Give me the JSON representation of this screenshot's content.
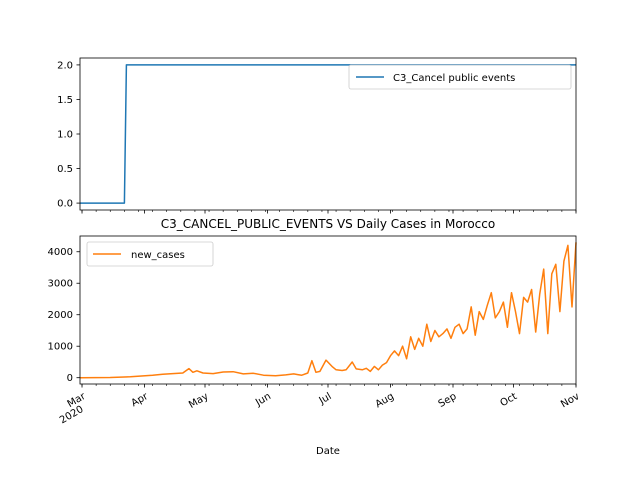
{
  "chart_data": [
    {
      "type": "line",
      "title": "",
      "xlabel": "",
      "ylabel": "",
      "x_range": [
        "2020-02-29",
        "2020-11-01"
      ],
      "ylim": [
        -0.1,
        2.1
      ],
      "y_ticks": [
        "0.0",
        "0.5",
        "1.0",
        "1.5",
        "2.0"
      ],
      "grid": false,
      "legend_placement": "upper right",
      "color": "#1f77b4",
      "series": [
        {
          "name": "C3_Cancel public events",
          "x": [
            "2020-02-29",
            "2020-03-22",
            "2020-03-23",
            "2020-11-01"
          ],
          "values": [
            0,
            0,
            2,
            2
          ]
        }
      ]
    },
    {
      "type": "line",
      "title": "C3_CANCEL_PUBLIC_EVENTS VS Daily Cases in Morocco",
      "xlabel": "Date",
      "ylabel": "",
      "x_range": [
        "2020-02-29",
        "2020-11-01"
      ],
      "ylim": [
        -200,
        4500
      ],
      "y_ticks": [
        "0",
        "1000",
        "2000",
        "3000",
        "4000"
      ],
      "x_ticks": [
        {
          "date": "2020-03-01",
          "label": "Mar",
          "sublabel": "2020"
        },
        {
          "date": "2020-04-01",
          "label": "Apr"
        },
        {
          "date": "2020-05-01",
          "label": "May"
        },
        {
          "date": "2020-06-01",
          "label": "Jun"
        },
        {
          "date": "2020-07-01",
          "label": "Jul"
        },
        {
          "date": "2020-08-01",
          "label": "Aug"
        },
        {
          "date": "2020-09-01",
          "label": "Sep"
        },
        {
          "date": "2020-10-01",
          "label": "Oct"
        },
        {
          "date": "2020-11-01",
          "label": "Nov"
        }
      ],
      "grid": false,
      "legend_placement": "upper left",
      "color": "#ff7f0e",
      "series": [
        {
          "name": "new_cases",
          "x": [
            "2020-02-29",
            "2020-03-15",
            "2020-03-25",
            "2020-04-05",
            "2020-04-10",
            "2020-04-15",
            "2020-04-20",
            "2020-04-23",
            "2020-04-25",
            "2020-04-27",
            "2020-04-30",
            "2020-05-05",
            "2020-05-10",
            "2020-05-15",
            "2020-05-20",
            "2020-05-25",
            "2020-05-30",
            "2020-06-05",
            "2020-06-10",
            "2020-06-14",
            "2020-06-16",
            "2020-06-18",
            "2020-06-21",
            "2020-06-23",
            "2020-06-25",
            "2020-06-27",
            "2020-06-30",
            "2020-07-03",
            "2020-07-05",
            "2020-07-08",
            "2020-07-10",
            "2020-07-13",
            "2020-07-15",
            "2020-07-18",
            "2020-07-20",
            "2020-07-22",
            "2020-07-24",
            "2020-07-26",
            "2020-07-28",
            "2020-07-30",
            "2020-08-01",
            "2020-08-03",
            "2020-08-05",
            "2020-08-07",
            "2020-08-09",
            "2020-08-11",
            "2020-08-13",
            "2020-08-15",
            "2020-08-17",
            "2020-08-19",
            "2020-08-21",
            "2020-08-23",
            "2020-08-25",
            "2020-08-27",
            "2020-08-29",
            "2020-08-31",
            "2020-09-02",
            "2020-09-04",
            "2020-09-06",
            "2020-09-08",
            "2020-09-10",
            "2020-09-12",
            "2020-09-14",
            "2020-09-16",
            "2020-09-18",
            "2020-09-20",
            "2020-09-22",
            "2020-09-24",
            "2020-09-26",
            "2020-09-28",
            "2020-09-30",
            "2020-10-02",
            "2020-10-04",
            "2020-10-06",
            "2020-10-08",
            "2020-10-10",
            "2020-10-12",
            "2020-10-14",
            "2020-10-16",
            "2020-10-18",
            "2020-10-20",
            "2020-10-22",
            "2020-10-24",
            "2020-10-26",
            "2020-10-28",
            "2020-10-30",
            "2020-11-01"
          ],
          "values": [
            0,
            5,
            30,
            80,
            110,
            130,
            150,
            290,
            170,
            220,
            150,
            130,
            180,
            190,
            120,
            140,
            80,
            60,
            90,
            120,
            100,
            80,
            150,
            540,
            170,
            200,
            560,
            360,
            250,
            230,
            250,
            500,
            280,
            250,
            300,
            200,
            360,
            250,
            400,
            480,
            700,
            850,
            700,
            1000,
            600,
            1300,
            900,
            1250,
            1000,
            1700,
            1150,
            1500,
            1300,
            1400,
            1550,
            1250,
            1600,
            1700,
            1400,
            1550,
            2250,
            1350,
            2100,
            1850,
            2300,
            2700,
            1900,
            2100,
            2400,
            1600,
            2700,
            2100,
            1400,
            2550,
            2400,
            2800,
            1450,
            2650,
            3450,
            1400,
            3300,
            3600,
            2100,
            3700,
            4200,
            2250,
            4300
          ]
        }
      ]
    }
  ]
}
